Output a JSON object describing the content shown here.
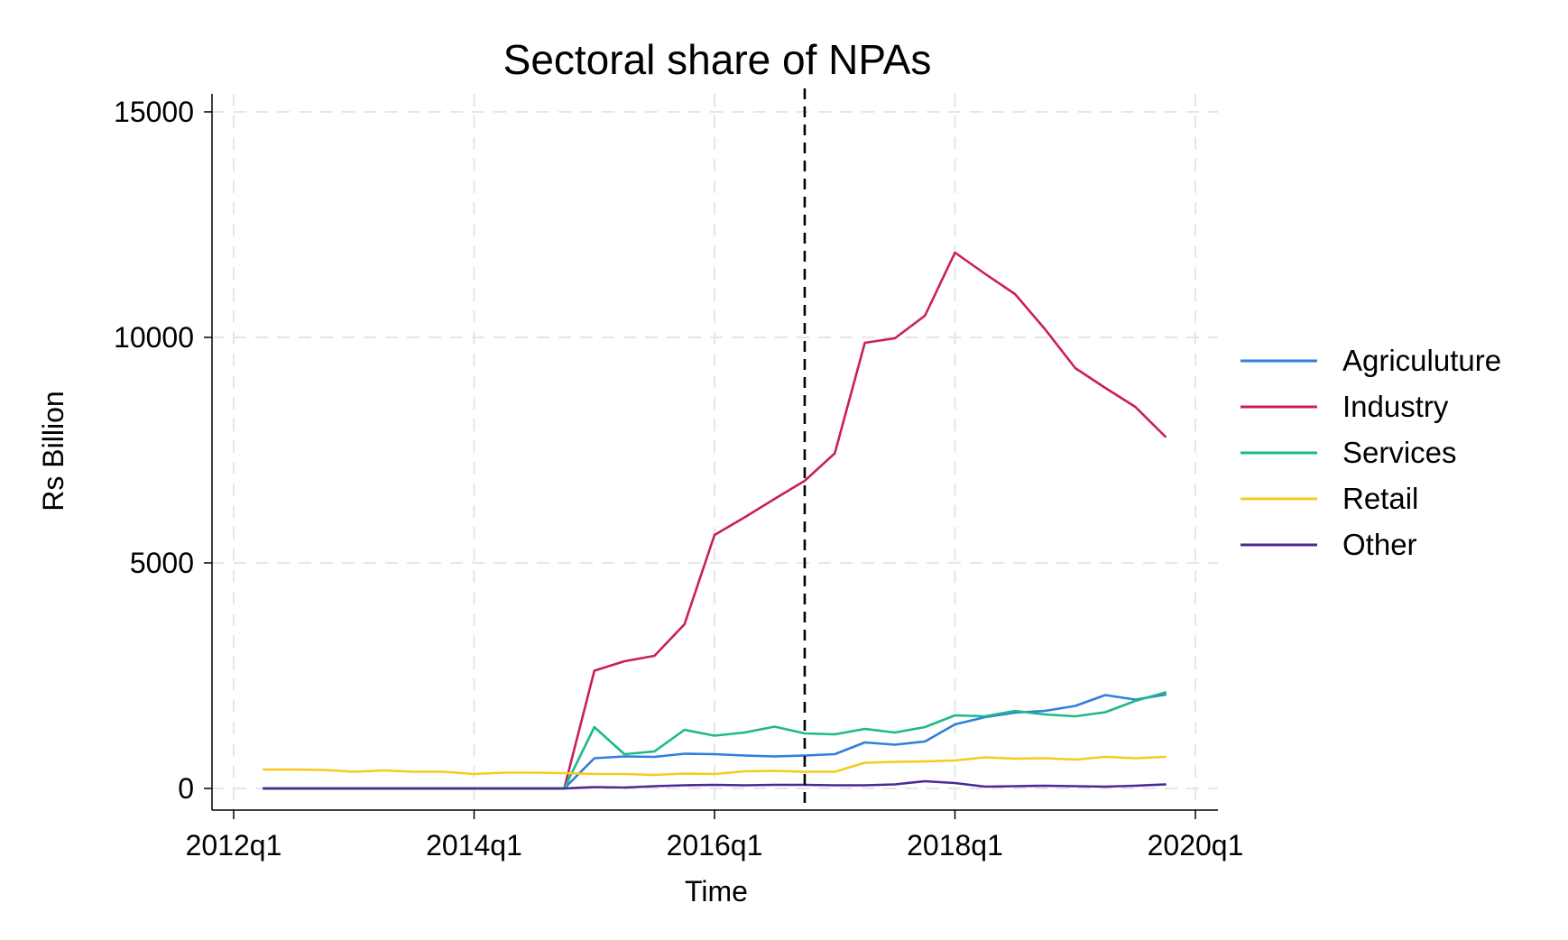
{
  "chart_data": {
    "type": "line",
    "title": "Sectoral share of NPAs",
    "xlabel": "Time",
    "ylabel": "Rs Billion",
    "xlim": [
      "2012q1",
      "2020q1"
    ],
    "ylim": [
      0,
      15000
    ],
    "x_ticks": [
      "2012q1",
      "2014q1",
      "2016q1",
      "2018q1",
      "2020q1"
    ],
    "y_ticks": [
      0,
      5000,
      10000,
      15000
    ],
    "grid": true,
    "legend_position": "right",
    "reference_line": {
      "x": "2016q4",
      "style": "dashed",
      "color": "#000000"
    },
    "x": [
      "2012q2",
      "2012q3",
      "2012q4",
      "2013q1",
      "2013q2",
      "2013q3",
      "2013q4",
      "2014q1",
      "2014q2",
      "2014q3",
      "2014q4",
      "2015q1",
      "2015q2",
      "2015q3",
      "2015q4",
      "2016q1",
      "2016q2",
      "2016q3",
      "2016q4",
      "2017q1",
      "2017q2",
      "2017q3",
      "2017q4",
      "2018q1",
      "2018q2",
      "2018q3",
      "2018q4",
      "2019q1",
      "2019q2",
      "2019q3",
      "2019q4"
    ],
    "series": [
      {
        "name": "Agriculuture",
        "color": "#2f7fdc",
        "values": [
          0,
          0,
          0,
          0,
          0,
          0,
          0,
          0,
          0,
          0,
          0,
          670,
          710,
          700,
          770,
          760,
          730,
          710,
          730,
          760,
          1020,
          970,
          1040,
          1420,
          1580,
          1680,
          1720,
          1830,
          2070,
          1970,
          2080
        ]
      },
      {
        "name": "Industry",
        "color": "#cb1d5e",
        "values": [
          0,
          0,
          0,
          0,
          0,
          0,
          0,
          0,
          0,
          0,
          0,
          2610,
          2820,
          2940,
          3640,
          5620,
          6010,
          6420,
          6820,
          7430,
          9880,
          9980,
          10480,
          11880,
          11410,
          10960,
          10180,
          9320,
          8880,
          8460,
          7800
        ]
      },
      {
        "name": "Services",
        "color": "#1db98a",
        "values": [
          0,
          0,
          0,
          0,
          0,
          0,
          0,
          0,
          0,
          0,
          0,
          1360,
          760,
          820,
          1300,
          1170,
          1240,
          1370,
          1220,
          1200,
          1320,
          1240,
          1360,
          1620,
          1600,
          1720,
          1640,
          1600,
          1690,
          1940,
          2130
        ]
      },
      {
        "name": "Retail",
        "color": "#f5cb1d",
        "values": [
          420,
          420,
          410,
          370,
          400,
          370,
          370,
          320,
          350,
          350,
          340,
          320,
          320,
          300,
          330,
          320,
          380,
          390,
          370,
          370,
          570,
          590,
          600,
          620,
          690,
          660,
          670,
          640,
          700,
          670,
          700
        ]
      },
      {
        "name": "Other",
        "color": "#4b2a94",
        "values": [
          0,
          0,
          0,
          0,
          0,
          0,
          0,
          0,
          0,
          0,
          0,
          30,
          20,
          50,
          70,
          80,
          70,
          80,
          80,
          70,
          70,
          90,
          160,
          120,
          40,
          50,
          60,
          50,
          40,
          60,
          90
        ]
      }
    ]
  }
}
